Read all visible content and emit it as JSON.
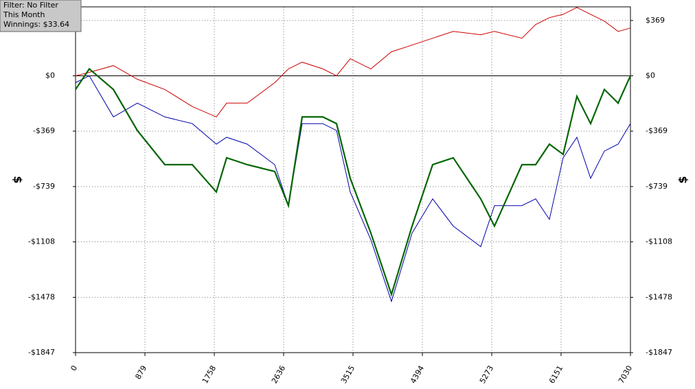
{
  "chart_data": {
    "type": "line",
    "annotations": [
      "Filter: No Filter",
      "This Month",
      "Winnings: $33.64"
    ],
    "ylabel": "$",
    "y2label": "$",
    "x": [
      0,
      174,
      479,
      783,
      1131,
      1479,
      1784,
      1914,
      2175,
      2523,
      2697,
      2871,
      3132,
      3306,
      3480,
      3741,
      4002,
      4263,
      4524,
      4785,
      5133,
      5307,
      5655,
      5829,
      6003,
      6177,
      6351,
      6525,
      6699,
      6873,
      7030
    ],
    "series": [
      {
        "color": "#cc0000",
        "values": [
          0,
          23,
          68,
          -23,
          -91,
          -205,
          -274,
          -182,
          -182,
          -46,
          46,
          91,
          46,
          0,
          114,
          46,
          160,
          205,
          251,
          296,
          274,
          296,
          251,
          342,
          388,
          410,
          456,
          410,
          365,
          296,
          319
        ]
      },
      {
        "color": "#0000aa",
        "values": [
          -46,
          0,
          -274,
          -182,
          -274,
          -319,
          -456,
          -410,
          -456,
          -593,
          -866,
          -319,
          -319,
          -365,
          -775,
          -1094,
          -1505,
          -1049,
          -821,
          -1003,
          -1140,
          -866,
          -866,
          -821,
          -958,
          -547,
          -410,
          -684,
          -502,
          -456,
          -319
        ]
      },
      {
        "color": "#006600",
        "values": [
          -91,
          46,
          -91,
          -365,
          -593,
          -593,
          -775,
          -547,
          -593,
          -638,
          -866,
          -274,
          -274,
          -319,
          -684,
          -1049,
          -1459,
          -1003,
          -593,
          -547,
          -821,
          -1003,
          -593,
          -593,
          -456,
          -524,
          -137,
          -319,
          -91,
          -182,
          0
        ]
      }
    ],
    "xlim": [
      0,
      7030
    ],
    "xticks": [
      0,
      879,
      1758,
      2636,
      3515,
      4394,
      5273,
      6151,
      7030
    ],
    "ylim": [
      -1847,
      460
    ],
    "yticks": [
      {
        "value": 369,
        "label": "$369"
      },
      {
        "value": 0,
        "label": "$0"
      },
      {
        "value": -369,
        "label": "-$369"
      },
      {
        "value": -739,
        "label": "-$739"
      },
      {
        "value": -1108,
        "label": "-$1108"
      },
      {
        "value": -1478,
        "label": "-$1478"
      },
      {
        "value": -1847,
        "label": "-$1847"
      }
    ],
    "y2lim": [
      -1847,
      460
    ],
    "y2ticks": [
      {
        "value": 369,
        "label": "$369"
      },
      {
        "value": 0,
        "label": "$0"
      },
      {
        "value": -369,
        "label": "-$369"
      },
      {
        "value": -739,
        "label": "-$739"
      },
      {
        "value": -1108,
        "label": "-$1108"
      },
      {
        "value": -1478,
        "label": "-$1478"
      },
      {
        "value": -1847,
        "label": "-$1847"
      }
    ],
    "grid": true
  }
}
